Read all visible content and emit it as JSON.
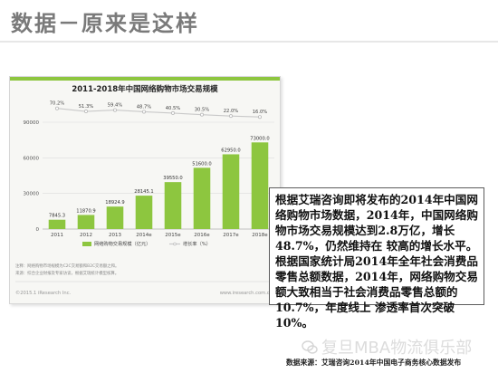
{
  "page": {
    "title": "数据－原来是这样"
  },
  "chart_data": {
    "type": "bar",
    "title": "2011-2018年中国网络购物市场交易规模",
    "categories": [
      "2011",
      "2012",
      "2013",
      "2014e",
      "2015e",
      "2016e",
      "2017e",
      "2018e"
    ],
    "series": [
      {
        "name": "网络购物交易规模（亿元）",
        "kind": "bar",
        "color": "#8dc63f",
        "values": [
          7845.3,
          11870.9,
          18924.9,
          28145.1,
          39550.0,
          51600.0,
          62950.0,
          73000.0
        ],
        "labels": [
          "7845.3",
          "11870.9",
          "18924.9",
          "28145.1",
          "39550.0",
          "51600.0",
          "62950.0",
          "73000.0"
        ]
      },
      {
        "name": "增长率（%）",
        "kind": "line",
        "color": "#c9c9c9",
        "values": [
          70.2,
          51.3,
          59.4,
          48.7,
          40.5,
          30.5,
          22.0,
          16.0
        ],
        "labels": [
          "70.2%",
          "51.3%",
          "59.4%",
          "48.7%",
          "40.5%",
          "30.5%",
          "22.0%",
          "16.0%"
        ]
      }
    ],
    "y_ticks": [
      "0",
      "30000",
      "60000",
      "90000"
    ],
    "ylim": [
      0,
      90000
    ],
    "grid": true,
    "legend": "bottom-center",
    "notes": [
      "注释：网络购物市场规模为C2C交易额和B2C交易额之和。",
      "来源：综合企业财报及专家访谈，根据艾瑞统计模型核算。"
    ],
    "footer_left": "©2015.1 iResearch Inc.",
    "footer_right": "www.iresearch.com.cn"
  },
  "text_box": {
    "body": "根据艾瑞咨询即将发布的2014年中国网络购物市场数据，2014年，中国网络购物市场交易规模达到2.8万亿，增长48.7%，仍然维持在 较高的增长水平。根据国家统计局2014年全年社会消费品零售总额数据，2014年，网络购物交易额大致相当于社会消费品零售总额的10.7%，年度线上 渗透率首次突破10%。"
  },
  "watermark": {
    "text": "复旦MBA物流俱乐部"
  },
  "source": {
    "text": "数据来源：艾瑞咨询2014年中国电子商务核心数据发布"
  },
  "colors": {
    "bar": "#8dc63f",
    "line": "#c9c9c9",
    "title_bar": "#8dc63f"
  }
}
